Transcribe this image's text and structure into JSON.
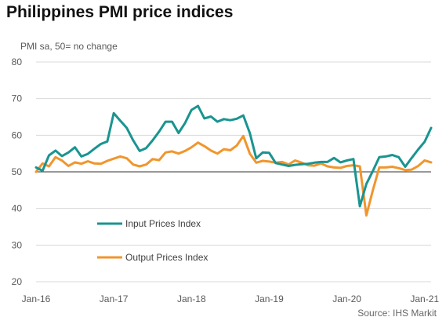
{
  "title": "Philippines PMI price indices",
  "source": "Source: IHS Markit",
  "chart_data": {
    "type": "line",
    "title": "Philippines PMI price indices",
    "ylabel": "PMI sa, 50= no change",
    "xlabel": "",
    "ylim": [
      20,
      80
    ],
    "yticks": [
      20,
      30,
      40,
      50,
      60,
      70,
      80
    ],
    "reference_line": 50,
    "grid": "horizontal",
    "legend_placement": "lower-left",
    "x_start": "Jan-16",
    "x_end": "Jan-21",
    "xtick_labels": [
      "Jan-16",
      "Jan-17",
      "Jan-18",
      "Jan-19",
      "Jan-20",
      "Jan-21"
    ],
    "series": [
      {
        "name": "Input Prices Index",
        "color": "#1a9490",
        "values": [
          51.2,
          50.3,
          54.5,
          55.8,
          54.3,
          55.3,
          56.7,
          54.2,
          54.9,
          56.3,
          57.6,
          58.3,
          66.0,
          64.0,
          62.0,
          58.6,
          55.7,
          56.5,
          58.6,
          61.0,
          63.7,
          63.7,
          60.6,
          63.3,
          66.9,
          68.0,
          64.6,
          65.1,
          63.7,
          64.4,
          64.1,
          64.5,
          65.4,
          60.6,
          53.7,
          55.3,
          55.2,
          52.4,
          52.0,
          51.6,
          51.9,
          52.1,
          52.2,
          52.5,
          52.7,
          52.7,
          53.8,
          52.6,
          53.1,
          53.5,
          40.6,
          46.7,
          50.2,
          54.0,
          54.2,
          54.6,
          54.0,
          51.4,
          53.8,
          56.1,
          58.2,
          62.0
        ]
      },
      {
        "name": "Output Prices Index",
        "color": "#f0962d",
        "values": [
          50.0,
          52.3,
          51.5,
          54.0,
          53.1,
          51.6,
          52.6,
          52.2,
          52.9,
          52.3,
          52.2,
          53.0,
          53.6,
          54.2,
          53.7,
          52.0,
          51.5,
          52.0,
          53.5,
          53.2,
          55.3,
          55.6,
          55.0,
          55.7,
          56.7,
          58.0,
          57.0,
          55.8,
          55.0,
          56.2,
          55.9,
          57.2,
          59.8,
          55.0,
          52.5,
          53.0,
          52.8,
          52.5,
          52.7,
          52.0,
          53.1,
          52.5,
          51.8,
          51.7,
          52.3,
          51.5,
          51.2,
          51.1,
          51.6,
          51.8,
          51.5,
          38.1,
          44.9,
          51.2,
          51.2,
          51.4,
          51.0,
          50.5,
          50.6,
          51.6,
          53.1,
          52.6
        ]
      }
    ]
  }
}
